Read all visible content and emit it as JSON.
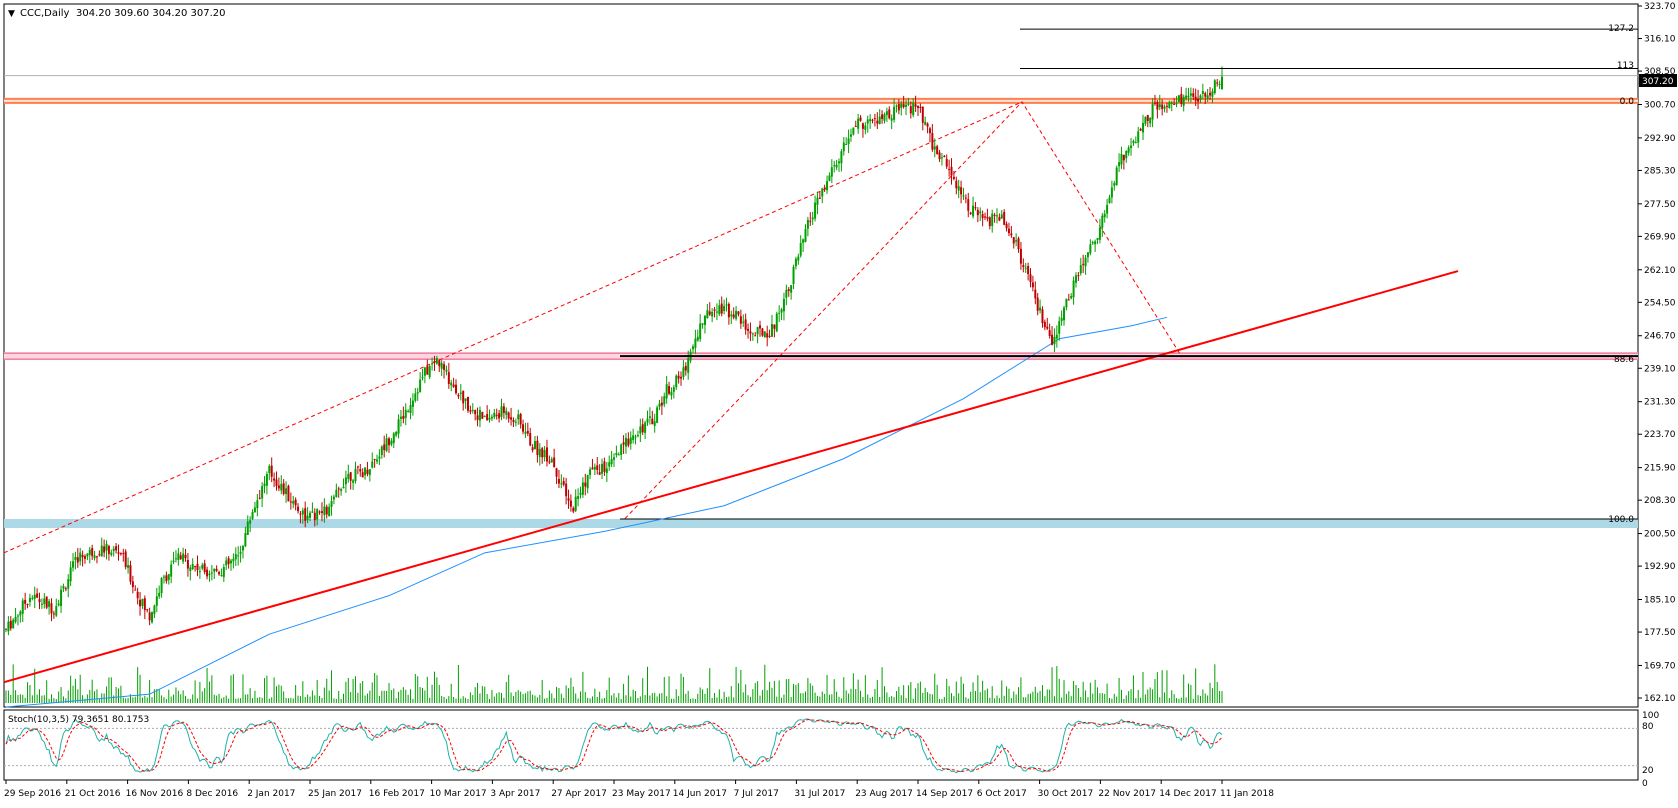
{
  "header": {
    "arrow": "▼",
    "symbol": "CCC,Daily",
    "ohlc": "304.20 309.60 304.20 307.20"
  },
  "price_tag": "307.20",
  "fib_labels": {
    "f1272": "127.2",
    "f113": "113",
    "f0": "0.0",
    "f886": "88.6",
    "f100": "100.0"
  },
  "stoch": {
    "header": "Stoch(10,3,5) 79.3651 80.1753",
    "levels": [
      "100",
      "80",
      "20",
      "0"
    ]
  },
  "colors": {
    "up": "#00a000",
    "down": "#c00000",
    "ma": "#1e90ff",
    "trend": "#ff0000",
    "resistance": "#ff7f50",
    "support_band": "#add8e6",
    "stoch_main": "#20b2aa",
    "stoch_signal": "#ff0000"
  },
  "chart_data": {
    "type": "candlestick",
    "symbol": "CCC",
    "timeframe": "Daily",
    "y_ticks": [
      "323.70",
      "316.10",
      "308.50",
      "300.70",
      "292.90",
      "285.30",
      "277.50",
      "269.90",
      "262.10",
      "254.50",
      "246.70",
      "239.10",
      "231.30",
      "223.70",
      "215.90",
      "208.30",
      "200.50",
      "192.90",
      "185.10",
      "177.50",
      "169.70",
      "162.10"
    ],
    "ylim": [
      162.1,
      323.7
    ],
    "x_ticks": [
      "29 Sep 2016",
      "21 Oct 2016",
      "16 Nov 2016",
      "8 Dec 2016",
      "2 Jan 2017",
      "25 Jan 2017",
      "16 Feb 2017",
      "10 Mar 2017",
      "3 Apr 2017",
      "27 Apr 2017",
      "23 May 2017",
      "14 Jun 2017",
      "7 Jul 2017",
      "31 Jul 2017",
      "23 Aug 2017",
      "14 Sep 2017",
      "6 Oct 2017",
      "30 Oct 2017",
      "22 Nov 2017",
      "14 Dec 2017",
      "11 Jan 2018"
    ],
    "price_path": [
      [
        0,
        178
      ],
      [
        10,
        186
      ],
      [
        20,
        183
      ],
      [
        30,
        195
      ],
      [
        40,
        197
      ],
      [
        48,
        196
      ],
      [
        55,
        186
      ],
      [
        60,
        181
      ],
      [
        65,
        189
      ],
      [
        72,
        195
      ],
      [
        82,
        192
      ],
      [
        90,
        192
      ],
      [
        97,
        195
      ],
      [
        103,
        206
      ],
      [
        110,
        215
      ],
      [
        118,
        209
      ],
      [
        126,
        204
      ],
      [
        135,
        206
      ],
      [
        142,
        214
      ],
      [
        150,
        215
      ],
      [
        157,
        220
      ],
      [
        165,
        227
      ],
      [
        175,
        238
      ],
      [
        180,
        241
      ],
      [
        186,
        236
      ],
      [
        192,
        231
      ],
      [
        200,
        227
      ],
      [
        208,
        229
      ],
      [
        214,
        227
      ],
      [
        220,
        221
      ],
      [
        228,
        218
      ],
      [
        236,
        206
      ],
      [
        244,
        215
      ],
      [
        252,
        216
      ],
      [
        262,
        224
      ],
      [
        270,
        227
      ],
      [
        276,
        234
      ],
      [
        282,
        237
      ],
      [
        290,
        249
      ],
      [
        296,
        254
      ],
      [
        304,
        252
      ],
      [
        312,
        247
      ],
      [
        320,
        248
      ],
      [
        328,
        260
      ],
      [
        336,
        274
      ],
      [
        345,
        285
      ],
      [
        355,
        296
      ],
      [
        365,
        297
      ],
      [
        375,
        300
      ],
      [
        381,
        300
      ],
      [
        388,
        290
      ],
      [
        394,
        286
      ],
      [
        402,
        277
      ],
      [
        410,
        273
      ],
      [
        416,
        275
      ],
      [
        422,
        268
      ],
      [
        430,
        255
      ],
      [
        437,
        244
      ],
      [
        444,
        256
      ],
      [
        450,
        264
      ],
      [
        457,
        272
      ],
      [
        465,
        287
      ],
      [
        472,
        293
      ],
      [
        479,
        300
      ],
      [
        486,
        300
      ],
      [
        490,
        302
      ],
      [
        496,
        302
      ],
      [
        503,
        304
      ],
      [
        508,
        307.2
      ]
    ],
    "current": {
      "open": 304.2,
      "high": 309.6,
      "low": 304.2,
      "close": 307.2
    },
    "fibonacci": {
      "0.0": 301.3,
      "88.6": 241.7,
      "100.0": 203.9,
      "113": 309.1,
      "127.2": 318.3
    },
    "horizontal_zones": [
      {
        "name": "resistance",
        "value": 301.3
      },
      {
        "name": "support",
        "value": 241.7
      },
      {
        "name": "support_band",
        "value": 203.9
      }
    ],
    "trendline": {
      "from": [
        "29 Sep 2016",
        165.8
      ],
      "to": [
        "11 Jan 2018",
        250.6
      ]
    },
    "moving_average": [
      [
        60,
        163
      ],
      [
        110,
        177
      ],
      [
        160,
        186
      ],
      [
        200,
        196
      ],
      [
        250,
        201
      ],
      [
        300,
        207
      ],
      [
        350,
        218
      ],
      [
        400,
        232
      ],
      [
        440,
        246
      ],
      [
        470,
        249
      ],
      [
        485,
        251
      ]
    ],
    "volume": true,
    "stochastic": {
      "k": 79.3651,
      "d": 80.1753,
      "params": [
        10,
        3,
        5
      ],
      "levels": [
        100,
        80,
        20,
        0
      ]
    }
  }
}
